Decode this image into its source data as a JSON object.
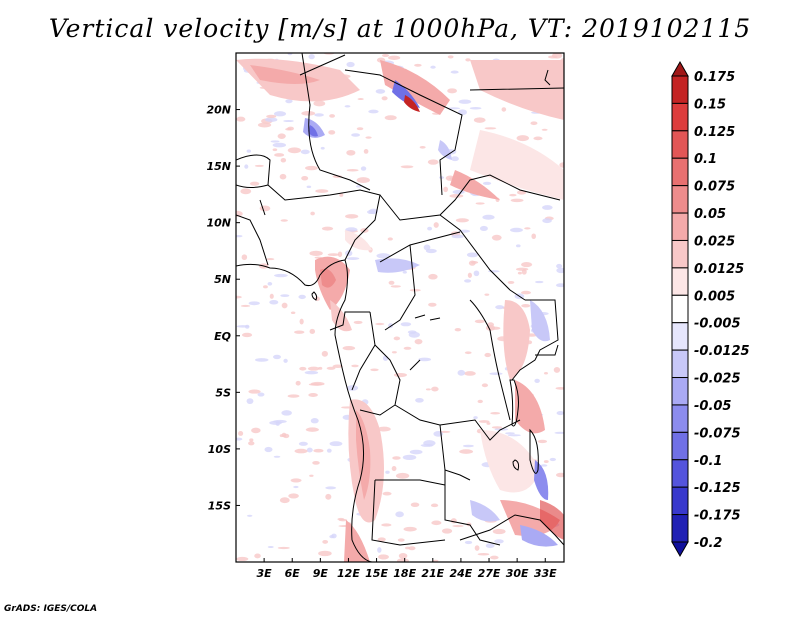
{
  "title": "Vertical velocity [m/s] at 1000hPa, VT: 2019102115",
  "credit": "GrADS: IGES/COLA",
  "map": {
    "lon_labels": [
      "3E",
      "6E",
      "9E",
      "12E",
      "15E",
      "18E",
      "21E",
      "24E",
      "27E",
      "30E",
      "33E"
    ],
    "lon_values": [
      3,
      6,
      9,
      12,
      15,
      18,
      21,
      24,
      27,
      30,
      33
    ],
    "lat_labels": [
      "20N",
      "15N",
      "10N",
      "5N",
      "EQ",
      "5S",
      "10S",
      "15S"
    ],
    "lat_values": [
      20,
      15,
      10,
      5,
      0,
      -5,
      -10,
      -15
    ],
    "lon_range": [
      0,
      35
    ],
    "lat_range": [
      -20,
      25
    ]
  },
  "colorbar": {
    "labels": [
      "0.175",
      "0.15",
      "0.125",
      "0.1",
      "0.075",
      "0.05",
      "0.025",
      "0.0125",
      "0.005",
      "-0.005",
      "-0.0125",
      "-0.025",
      "-0.05",
      "-0.075",
      "-0.1",
      "-0.125",
      "-0.175",
      "-0.2"
    ],
    "colors": [
      "#a01818",
      "#c42424",
      "#dc3c3c",
      "#e25656",
      "#e87070",
      "#ee8c8c",
      "#f4aaaa",
      "#f8c8c8",
      "#fce6e6",
      "#ffffff",
      "#e6e6fc",
      "#c8c8f8",
      "#aaaaf4",
      "#8c8cee",
      "#7070e6",
      "#5454dc",
      "#3838cc",
      "#2020b4",
      "#10109c"
    ]
  }
}
